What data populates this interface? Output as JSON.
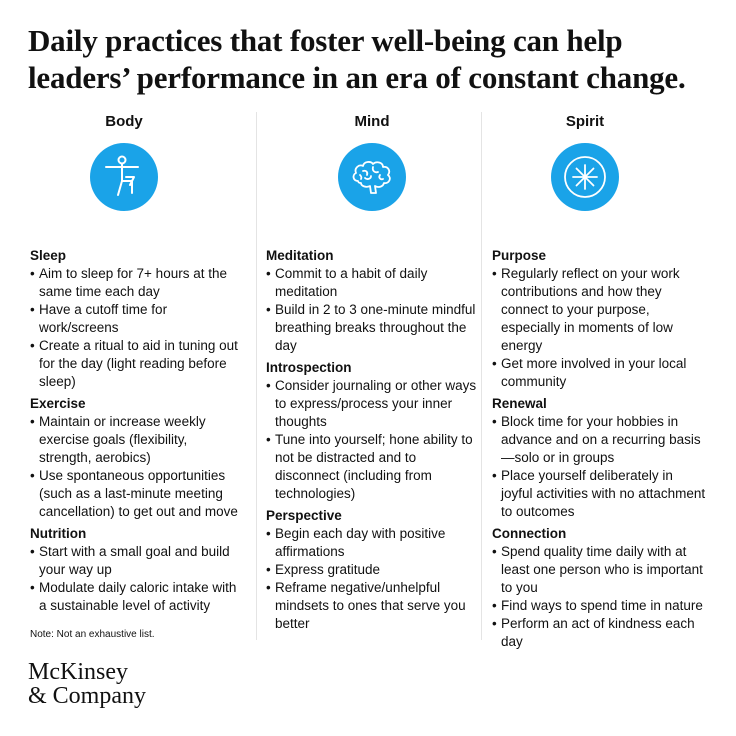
{
  "title_line1": "Daily practices that foster well-being can help",
  "title_line2": "leaders’ performance in an era of constant change.",
  "accent_color": "#1aa3e8",
  "columns": [
    {
      "heading": "Body",
      "icon": "person-stretching-icon",
      "sections": [
        {
          "title": "Sleep",
          "items": [
            "Aim to sleep for 7+ hours at the same time each day",
            "Have a cutoff time for work/screens",
            "Create a ritual to aid in tuning out for the day (light reading before sleep)"
          ]
        },
        {
          "title": "Exercise",
          "items": [
            "Maintain or increase weekly exercise goals (flexibility, strength, aerobics)",
            "Use spontaneous opportunities (such as a last-minute meeting cancellation) to get out and move"
          ]
        },
        {
          "title": "Nutrition",
          "items": [
            "Start with a small goal and build your way up",
            "Modulate daily caloric intake with a sustainable level of activity"
          ]
        }
      ]
    },
    {
      "heading": "Mind",
      "icon": "brain-icon",
      "sections": [
        {
          "title": "Meditation",
          "items": [
            "Commit to a habit of daily meditation",
            "Build in 2 to 3 one-minute mindful breathing breaks throughout the day"
          ]
        },
        {
          "title": "Introspection",
          "items": [
            "Consider journaling or other ways to express/process your inner thoughts",
            "Tune into yourself; hone ability to not be distracted and to disconnect (including from technologies)"
          ]
        },
        {
          "title": "Perspective",
          "items": [
            "Begin each day with positive affirmations",
            "Express gratitude",
            "Reframe negative/unhelpful mindsets to ones that serve you better"
          ]
        }
      ]
    },
    {
      "heading": "Spirit",
      "icon": "starburst-icon",
      "sections": [
        {
          "title": "Purpose",
          "items": [
            "Regularly reflect on your work contributions and how they connect to your purpose, especially in moments of low energy",
            "Get more involved in your local community"
          ]
        },
        {
          "title": "Renewal",
          "items": [
            "Block time for your hobbies in advance and on a recurring basis—solo or in groups",
            "Place yourself deliberately in joyful activities with no attachment to outcomes"
          ]
        },
        {
          "title": "Connection",
          "items": [
            "Spend quality time daily with at least one person who is important to you",
            "Find ways to spend time in nature",
            "Perform an act of kindness each day"
          ]
        }
      ]
    }
  ],
  "note": "Note: Not an exhaustive list.",
  "logo_line1": "McKinsey",
  "logo_line2": "& Company"
}
